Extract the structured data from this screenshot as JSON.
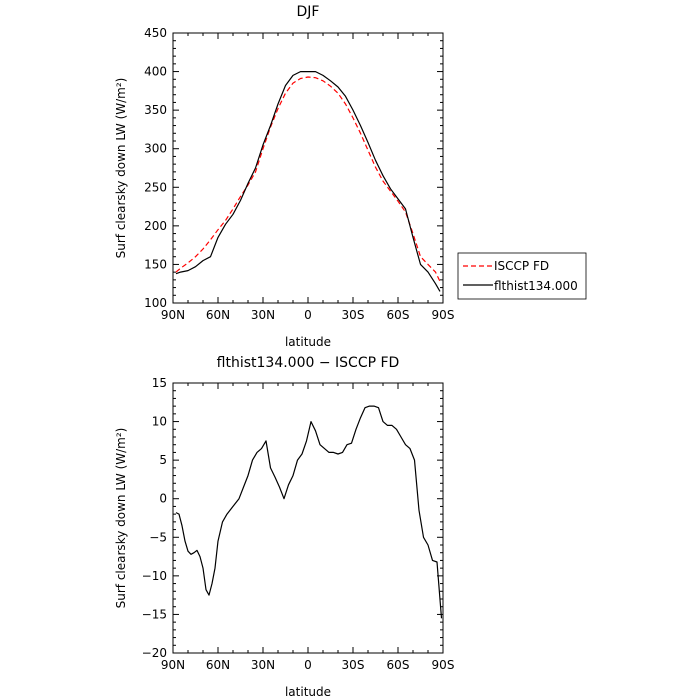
{
  "chart_data": [
    {
      "type": "line",
      "title": "DJF",
      "xlabel": "latitude",
      "ylabel": "Surf clearsky down LW (W/m²)",
      "xlim": [
        90,
        -90
      ],
      "ylim": [
        100,
        450
      ],
      "xticks": [
        90,
        60,
        30,
        0,
        -30,
        -60,
        -90
      ],
      "xtick_labels": [
        "90N",
        "60N",
        "30N",
        "0",
        "30S",
        "60S",
        "90S"
      ],
      "yticks": [
        100,
        150,
        200,
        250,
        300,
        350,
        400,
        450
      ],
      "ytick_labels": [
        "100",
        "150",
        "200",
        "250",
        "300",
        "350",
        "400",
        "450"
      ],
      "legend_position": "outside-right",
      "series": [
        {
          "name": "ISCCP FD",
          "color": "#ff0000",
          "style": "dashed",
          "x": [
            88,
            85,
            80,
            75,
            70,
            65,
            60,
            55,
            50,
            45,
            40,
            35,
            30,
            25,
            20,
            15,
            10,
            5,
            0,
            -5,
            -10,
            -15,
            -20,
            -25,
            -30,
            -35,
            -40,
            -45,
            -50,
            -55,
            -60,
            -65,
            -70,
            -75,
            -80,
            -85,
            -88
          ],
          "y": [
            140,
            145,
            152,
            160,
            170,
            182,
            195,
            207,
            222,
            238,
            253,
            270,
            300,
            328,
            352,
            372,
            385,
            391,
            393,
            392,
            388,
            381,
            372,
            358,
            340,
            320,
            298,
            276,
            258,
            245,
            232,
            218,
            190,
            160,
            150,
            140,
            128
          ]
        },
        {
          "name": "flthist134.000",
          "color": "#000000",
          "style": "solid",
          "x": [
            88,
            85,
            80,
            75,
            70,
            65,
            60,
            55,
            50,
            45,
            40,
            35,
            30,
            25,
            20,
            15,
            10,
            5,
            0,
            -5,
            -10,
            -15,
            -20,
            -25,
            -30,
            -35,
            -40,
            -45,
            -50,
            -55,
            -60,
            -65,
            -70,
            -75,
            -80,
            -85,
            -88
          ],
          "y": [
            138,
            140,
            142,
            147,
            155,
            160,
            185,
            202,
            215,
            233,
            255,
            275,
            305,
            330,
            358,
            382,
            395,
            400,
            400,
            400,
            395,
            388,
            380,
            368,
            350,
            330,
            308,
            285,
            265,
            248,
            235,
            222,
            185,
            150,
            140,
            125,
            115
          ]
        }
      ]
    },
    {
      "type": "line",
      "title": "flthist134.000 − ISCCP FD",
      "xlabel": "latitude",
      "ylabel": "Surf clearsky down LW (W/m²)",
      "xlim": [
        90,
        -90
      ],
      "ylim": [
        -20,
        15
      ],
      "xticks": [
        90,
        60,
        30,
        0,
        -30,
        -60,
        -90
      ],
      "xtick_labels": [
        "90N",
        "60N",
        "30N",
        "0",
        "30S",
        "60S",
        "90S"
      ],
      "yticks": [
        -20,
        -15,
        -10,
        -5,
        0,
        5,
        10,
        15
      ],
      "ytick_labels": [
        "−20",
        "−15",
        "−10",
        "−5",
        "0",
        "5",
        "10",
        "15"
      ],
      "series": [
        {
          "color": "#000000",
          "style": "solid",
          "x": [
            88,
            86,
            84,
            82,
            80,
            78,
            76,
            74,
            72,
            70,
            68,
            66,
            64,
            62,
            60,
            57,
            54,
            50,
            46,
            43,
            40,
            37,
            34,
            31,
            28,
            25,
            22,
            19,
            16,
            13,
            10,
            7,
            4,
            1,
            -2,
            -5,
            -8,
            -11,
            -14,
            -17,
            -20,
            -23,
            -26,
            -29,
            -32,
            -35,
            -38,
            -41,
            -44,
            -47,
            -50,
            -53,
            -56,
            -59,
            -62,
            -65,
            -68,
            -71,
            -74,
            -77,
            -80,
            -83,
            -86,
            -89
          ],
          "y": [
            -1.8,
            -2.0,
            -3.5,
            -5.5,
            -6.8,
            -7.2,
            -7.0,
            -6.7,
            -7.5,
            -9.0,
            -11.8,
            -12.5,
            -11.0,
            -9.0,
            -5.5,
            -3.0,
            -2.0,
            -1.0,
            0.0,
            1.5,
            3.0,
            5.0,
            6.0,
            6.5,
            7.5,
            4.0,
            2.8,
            1.5,
            0.0,
            1.8,
            3.0,
            5.0,
            5.8,
            7.5,
            10.0,
            8.8,
            7.0,
            6.5,
            6.0,
            6.0,
            5.8,
            6.0,
            7.0,
            7.2,
            9.0,
            10.5,
            11.8,
            12.0,
            12.0,
            11.8,
            10.0,
            9.5,
            9.5,
            9.0,
            8.0,
            7.0,
            6.5,
            5.0,
            -1.5,
            -5.0,
            -6.0,
            -8.0,
            -8.2,
            -15.5
          ]
        }
      ]
    }
  ]
}
